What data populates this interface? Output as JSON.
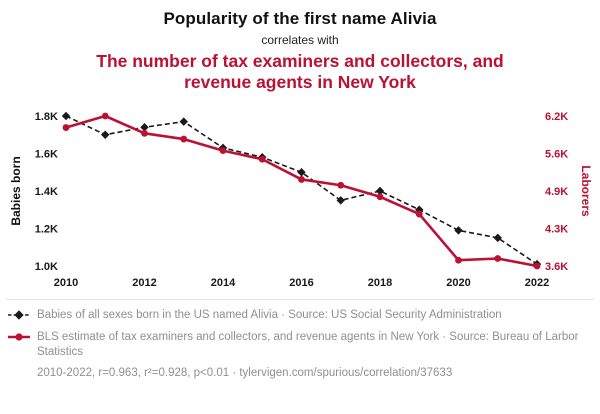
{
  "header": {
    "title": "Popularity of the first name Alivia",
    "subtitle": "correlates with",
    "secondary_title": "The number of tax examiners and collectors, and revenue agents in New York"
  },
  "colors": {
    "black": "#1a1a1a",
    "red": "#bb1133",
    "gray": "#8f8f8f"
  },
  "chart_data": {
    "type": "line",
    "title": "Popularity of the first name Alivia correlates with the number of tax examiners and collectors, and revenue agents in New York",
    "x": [
      2010,
      2011,
      2012,
      2013,
      2014,
      2015,
      2016,
      2017,
      2018,
      2019,
      2020,
      2021,
      2022
    ],
    "x_ticks": [
      2010,
      2012,
      2014,
      2016,
      2018,
      2020,
      2022
    ],
    "ylabel_left": "Babies born",
    "ylabel_right": "Laborers",
    "grid": "off",
    "legend_position": "bottom",
    "left_axis": {
      "min": 1.0,
      "max": 1.8,
      "ticks": [
        {
          "value": 1.0,
          "label": "1.0K"
        },
        {
          "value": 1.2,
          "label": "1.2K"
        },
        {
          "value": 1.4,
          "label": "1.4K"
        },
        {
          "value": 1.6,
          "label": "1.6K"
        },
        {
          "value": 1.8,
          "label": "1.8K"
        }
      ]
    },
    "right_axis": {
      "min": 3.6,
      "max": 6.2,
      "ticks": [
        {
          "value": 3.6,
          "label": "3.6K"
        },
        {
          "value": 4.25,
          "label": "4.3K"
        },
        {
          "value": 4.9,
          "label": "4.9K"
        },
        {
          "value": 5.55,
          "label": "5.6K"
        },
        {
          "value": 6.2,
          "label": "6.2K"
        }
      ]
    },
    "series": [
      {
        "name": "Babies of all sexes born in the US named Alivia",
        "axis": "left",
        "color": "black",
        "style": "dashed-diamond",
        "values": [
          1.8,
          1.7,
          1.74,
          1.77,
          1.63,
          1.58,
          1.5,
          1.35,
          1.4,
          1.3,
          1.19,
          1.15,
          1.01
        ]
      },
      {
        "name": "BLS estimate of tax examiners and collectors, and revenue agents in New York",
        "axis": "right",
        "color": "red",
        "style": "solid-circle",
        "values": [
          6.0,
          6.2,
          5.9,
          5.8,
          5.6,
          5.45,
          5.1,
          5.0,
          4.8,
          4.5,
          3.7,
          3.73,
          3.6
        ]
      }
    ]
  },
  "legend": {
    "items": [
      {
        "text": "Babies of all sexes born in the US named Alivia · Source: US Social Security Administration"
      },
      {
        "text": "BLS estimate of tax examiners and collectors, and revenue agents in New York · Source: Bureau of Larbor Statistics"
      }
    ]
  },
  "footer": {
    "text": "2010-2022, r=0.963, r²=0.928, p<0.01 · tylervigen.com/spurious/correlation/37633"
  }
}
